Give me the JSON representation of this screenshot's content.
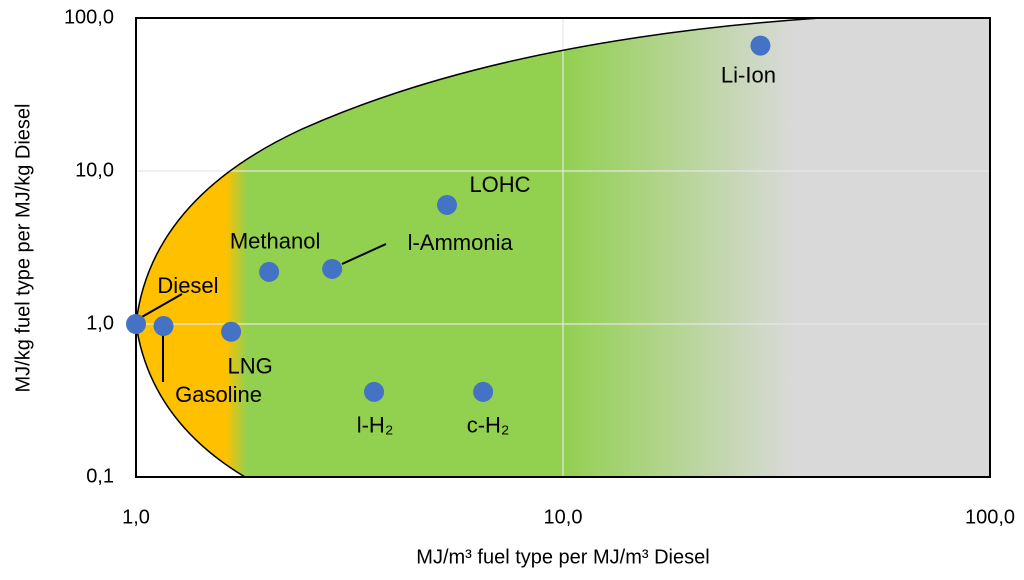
{
  "chart_data": {
    "type": "scatter",
    "xlabel": "MJ/m³ fuel type per MJ/m³ Diesel",
    "ylabel": "MJ/kg  fuel type per MJ/kg  Diesel",
    "xscale": "log",
    "yscale": "log",
    "grid": true,
    "color": "#4472c4",
    "labels": [
      "Diesel",
      "Gasoline",
      "LNG",
      "Methanol",
      "l-Ammonia",
      "l-H₂",
      "c-H₂",
      "LOHC",
      "Li-Ion"
    ],
    "x": [
      1.0,
      1.16,
      1.67,
      2.05,
      2.88,
      3.61,
      6.5,
      5.35,
      29
    ],
    "values": [
      1.0,
      0.97,
      0.89,
      2.19,
      2.29,
      0.36,
      0.36,
      6.0,
      66
    ],
    "xlim": [
      1,
      100
    ],
    "ylim": [
      0.1,
      100
    ],
    "xticks": [
      {
        "value": 1,
        "label": "1,0"
      },
      {
        "value": 10,
        "label": "10,0"
      },
      {
        "value": 100,
        "label": "100,0"
      }
    ],
    "yticks": [
      {
        "value": 0.1,
        "label": "0,1"
      },
      {
        "value": 1,
        "label": "1,0"
      },
      {
        "value": 10,
        "label": "10,0"
      },
      {
        "value": 100,
        "label": "100,0"
      }
    ]
  }
}
